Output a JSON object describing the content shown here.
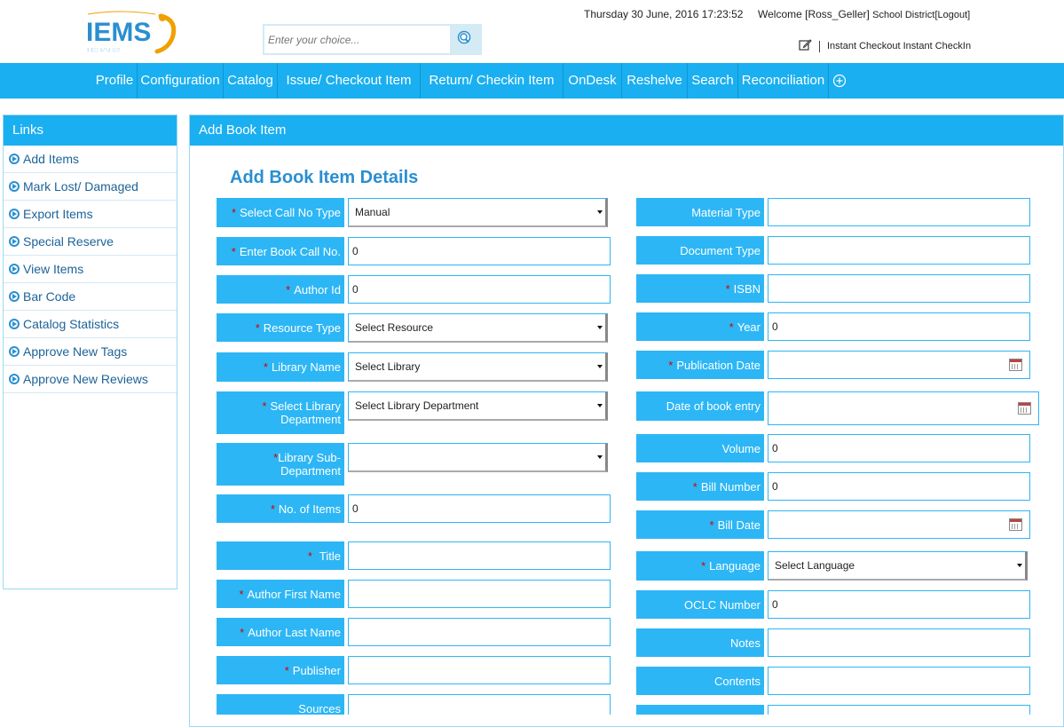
{
  "header": {
    "logo_text": "IEMS",
    "search_placeholder": "Enter your choice...",
    "datetime": "Thursday 30 June, 2016 17:23:52",
    "welcome_prefix": "Welcome [Ross_Geller]",
    "welcome_org": "School District",
    "logout": "[Logout]",
    "quick_links": [
      "Instant Checkout",
      "Instant CheckIn"
    ]
  },
  "nav": {
    "items": [
      "Profile",
      "Configuration",
      "Catalog",
      "Issue/ Checkout Item",
      "Return/ Checkin Item",
      "OnDesk",
      "Reshelve",
      "Search",
      "Reconciliation"
    ]
  },
  "sidebar": {
    "title": "Links",
    "items": [
      "Add Items",
      "Mark Lost/ Damaged",
      "Export Items",
      "Special Reserve",
      "View Items",
      "Bar Code",
      "Catalog Statistics",
      "Approve New Tags",
      "Approve New Reviews"
    ]
  },
  "main": {
    "panel_title": "Add Book Item",
    "form_title": "Add Book Item Details",
    "left_fields": [
      {
        "label": "Select Call No Type",
        "required": "*",
        "value": "Manual"
      },
      {
        "label": "Enter Book Call No.",
        "required": "*",
        "value": "0"
      },
      {
        "label": "Author Id",
        "required": "*",
        "value": "0"
      },
      {
        "label": "Resource Type",
        "required": "*",
        "value": "Select Resource"
      },
      {
        "label": "Library Name",
        "required": "*",
        "value": "Select Library"
      },
      {
        "label": "Select Library Department",
        "required": "*",
        "value": "Select Library Department"
      },
      {
        "label": "Library Sub-Department",
        "required": "*",
        "value": ""
      },
      {
        "label": "No. of Items",
        "required": "*",
        "value": "0"
      },
      {
        "label": "Title",
        "required": "*",
        "value": ""
      },
      {
        "label": "Author First Name",
        "required": "*",
        "value": ""
      },
      {
        "label": "Author Last Name",
        "required": "*",
        "value": ""
      },
      {
        "label": "Publisher",
        "required": "*",
        "value": ""
      },
      {
        "label": "Sources",
        "required": "",
        "value": ""
      }
    ],
    "right_fields": [
      {
        "label": "Material Type",
        "required": "",
        "value": ""
      },
      {
        "label": "Document Type",
        "required": "",
        "value": ""
      },
      {
        "label": "ISBN",
        "required": "*",
        "value": ""
      },
      {
        "label": "Year",
        "required": "*",
        "value": "0"
      },
      {
        "label": "Publication Date",
        "required": "*",
        "value": ""
      },
      {
        "label": "Date of book entry",
        "required": "",
        "value": ""
      },
      {
        "label": "Volume",
        "required": "",
        "value": "0"
      },
      {
        "label": "Bill Number",
        "required": "*",
        "value": "0"
      },
      {
        "label": "Bill Date",
        "required": "*",
        "value": ""
      },
      {
        "label": "Language",
        "required": "*",
        "value": "Select Language"
      },
      {
        "label": "OCLC Number",
        "required": "",
        "value": "0"
      },
      {
        "label": "Notes",
        "required": "",
        "value": ""
      },
      {
        "label": "Contents",
        "required": "",
        "value": ""
      },
      {
        "label": "",
        "required": "",
        "value": ""
      }
    ]
  }
}
